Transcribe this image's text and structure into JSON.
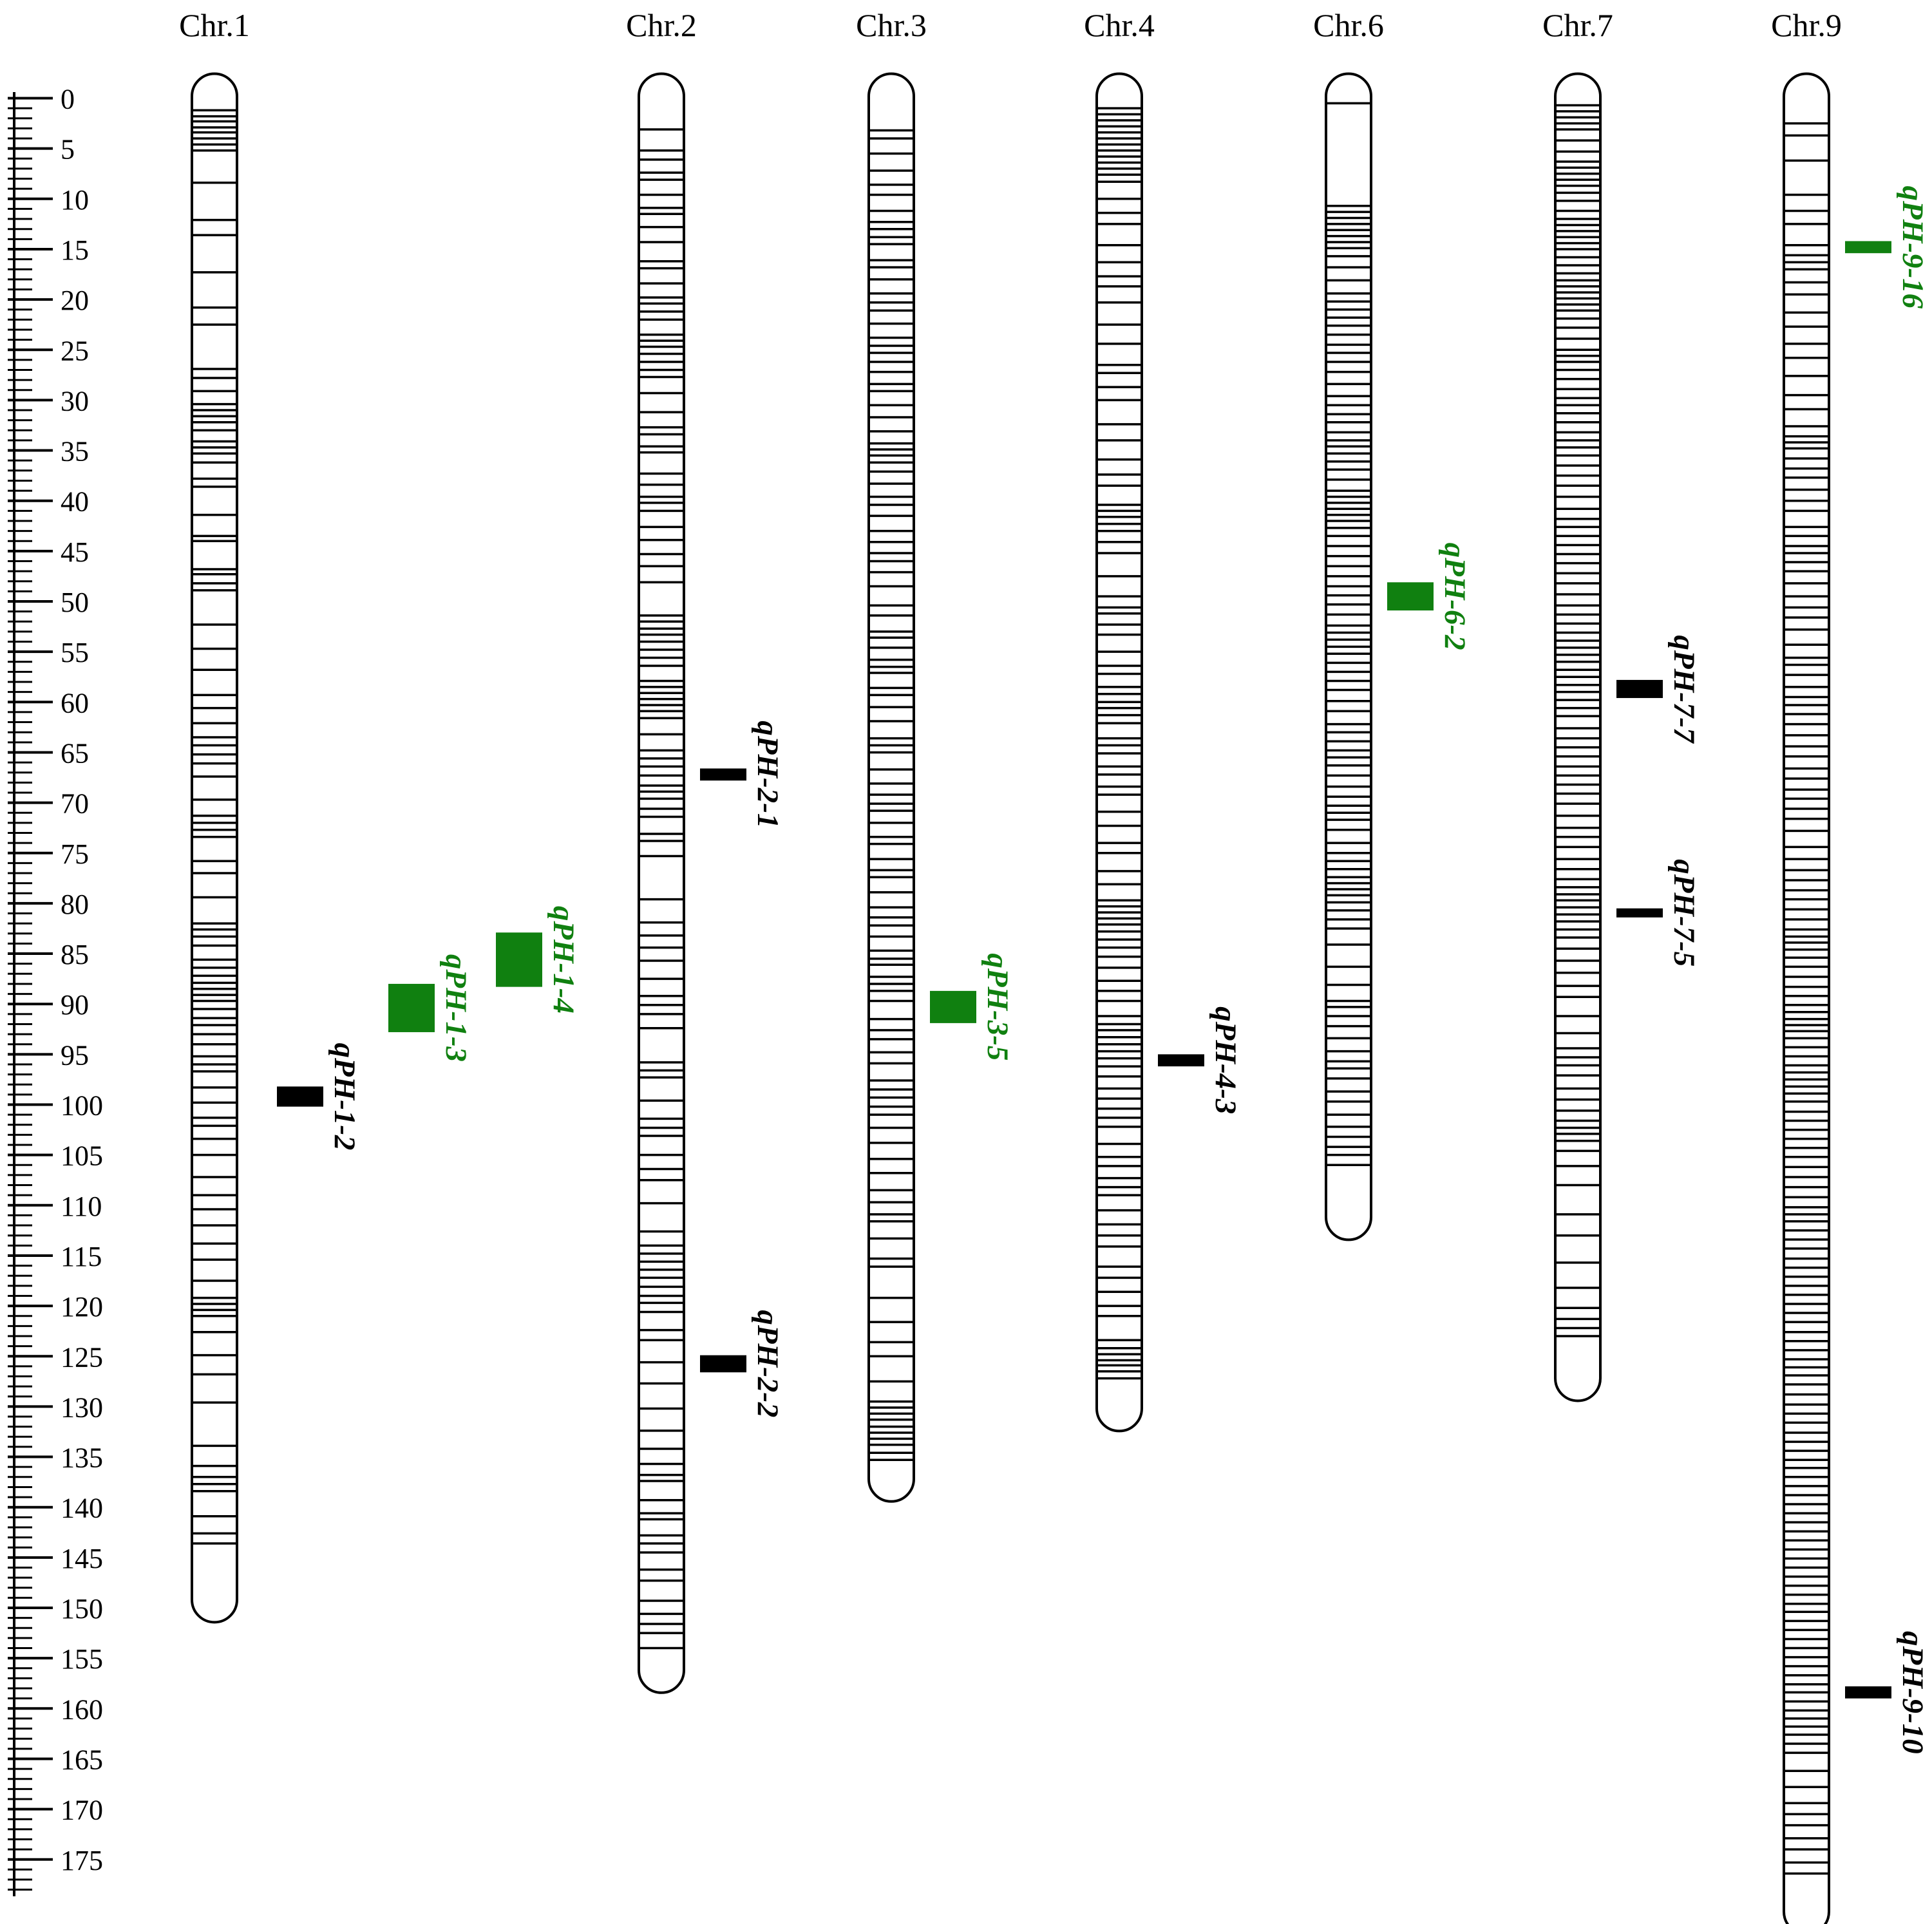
{
  "colors": {
    "black": "#000000",
    "green": "#108010"
  },
  "scale": {
    "max": 178,
    "label_step": 5,
    "labels": [
      "0",
      "5",
      "10",
      "15",
      "20",
      "25",
      "30",
      "35",
      "40",
      "45",
      "50",
      "55",
      "60",
      "65",
      "70",
      "75",
      "80",
      "85",
      "90",
      "95",
      "100",
      "105",
      "110",
      "115",
      "120",
      "125",
      "130",
      "135",
      "140",
      "145",
      "150",
      "155",
      "160",
      "165",
      "170",
      "175"
    ]
  },
  "chromosomes": [
    {
      "name": "Chr.1",
      "length": 149,
      "markers": [
        1.2,
        1.8,
        2.3,
        2.9,
        3.4,
        4.0,
        4.6,
        5.2,
        8.4,
        12.1,
        13.6,
        17.3,
        20.8,
        22.5,
        26.9,
        27.8,
        29.1,
        30.4,
        31.0,
        31.6,
        32.2,
        33.0,
        34.1,
        34.7,
        35.3,
        36.2,
        37.8,
        38.6,
        41.4,
        43.5,
        44.0,
        46.8,
        47.3,
        48.2,
        48.9,
        52.3,
        54.7,
        56.8,
        59.3,
        60.6,
        62.1,
        63.5,
        64.3,
        65.2,
        66.1,
        67.4,
        69.7,
        71.3,
        72.0,
        72.7,
        73.4,
        75.8,
        77.0,
        79.4,
        82.0,
        82.6,
        83.3,
        84.2,
        85.6,
        86.4,
        87.2,
        87.9,
        88.5,
        89.1,
        89.7,
        90.5,
        91.4,
        92.1,
        93.0,
        94.0,
        95.2,
        96.0,
        96.7,
        98.3,
        99.8,
        101.3,
        102.1,
        103.4,
        105.0,
        107.2,
        109.0,
        110.4,
        112.0,
        113.8,
        115.4,
        117.5,
        119.2,
        119.8,
        120.4,
        121.0,
        122.6,
        124.9,
        126.8,
        129.6,
        133.9,
        135.9,
        137.0,
        137.7,
        138.4,
        140.9,
        142.6,
        143.6
      ]
    },
    {
      "name": "Chr.2",
      "length": 156,
      "markers": [
        3.1,
        5.2,
        6.1,
        7.4,
        8.1,
        9.6,
        10.9,
        11.5,
        12.8,
        14.3,
        16.2,
        16.9,
        18.4,
        19.8,
        20.4,
        21.2,
        22.0,
        23.5,
        24.1,
        24.7,
        25.4,
        26.2,
        27.0,
        27.7,
        29.3,
        31.2,
        32.7,
        33.4,
        34.6,
        35.2,
        37.3,
        38.4,
        39.6,
        40.2,
        41.0,
        42.6,
        43.9,
        45.3,
        46.5,
        48.1,
        51.4,
        52.0,
        52.7,
        53.3,
        54.0,
        54.8,
        55.6,
        56.4,
        57.9,
        58.5,
        59.1,
        59.7,
        60.3,
        60.9,
        61.6,
        63.2,
        64.8,
        65.6,
        66.4,
        67.3,
        68.3,
        68.9,
        69.6,
        70.6,
        71.4,
        73.1,
        73.8,
        75.3,
        79.6,
        81.9,
        83.2,
        84.4,
        85.7,
        87.5,
        89.2,
        90.1,
        91.0,
        92.4,
        95.8,
        96.6,
        97.3,
        99.6,
        101.4,
        102.3,
        103.1,
        105.0,
        106.4,
        107.5,
        109.8,
        112.6,
        114.0,
        114.8,
        115.6,
        116.4,
        117.2,
        118.1,
        119.0,
        119.7,
        120.6,
        122.4,
        123.4,
        125.6,
        127.7,
        130.2,
        132.4,
        134.2,
        135.7,
        136.8,
        137.4,
        139.3,
        140.6,
        141.2,
        142.8,
        143.6,
        144.5,
        146.2,
        147.3,
        149.3,
        150.6,
        151.6,
        152.5,
        154.0
      ]
    },
    {
      "name": "Chr.3",
      "length": 137,
      "markers": [
        3.2,
        4.0,
        5.5,
        7.2,
        8.6,
        9.6,
        11.2,
        12.3,
        13.0,
        13.8,
        14.5,
        16.1,
        16.8,
        18.0,
        19.4,
        20.3,
        21.1,
        22.4,
        23.8,
        24.6,
        25.3,
        26.2,
        27.2,
        28.4,
        29.1,
        30.5,
        31.7,
        33.1,
        34.3,
        34.9,
        35.5,
        36.2,
        37.1,
        38.3,
        39.6,
        40.4,
        41.5,
        43.0,
        44.1,
        45.2,
        46.0,
        47.1,
        48.5,
        50.4,
        51.4,
        53.0,
        53.6,
        54.6,
        55.8,
        56.5,
        57.1,
        58.6,
        59.3,
        60.5,
        61.9,
        63.6,
        64.3,
        65.0,
        66.7,
        68.1,
        69.2,
        70.1,
        70.8,
        72.0,
        73.4,
        74.1,
        75.6,
        76.7,
        77.4,
        78.9,
        80.4,
        81.4,
        82.2,
        83.3,
        84.7,
        85.5,
        86.1,
        87.3,
        88.0,
        88.7,
        89.7,
        91.5,
        92.6,
        93.5,
        94.8,
        95.9,
        97.6,
        98.5,
        99.3,
        100.2,
        101.0,
        102.3,
        103.8,
        105.4,
        106.8,
        108.5,
        109.7,
        110.9,
        111.6,
        113.3,
        115.3,
        116.1,
        119.2,
        121.6,
        123.6,
        125.0,
        127.5,
        129.5,
        130.1,
        130.7,
        131.3,
        132.0,
        132.6,
        133.2,
        133.8,
        134.6,
        135.3
      ]
    },
    {
      "name": "Chr.4",
      "length": 130,
      "markers": [
        1.0,
        1.6,
        2.2,
        2.8,
        3.4,
        4.0,
        4.6,
        5.2,
        5.8,
        6.4,
        7.0,
        7.6,
        8.3,
        10.0,
        11.4,
        12.5,
        14.6,
        16.3,
        17.7,
        18.7,
        20.3,
        22.5,
        24.4,
        26.5,
        27.3,
        28.7,
        30.0,
        32.4,
        34.0,
        35.9,
        37.4,
        38.5,
        40.4,
        41.0,
        41.6,
        42.3,
        43.0,
        44.1,
        45.2,
        47.5,
        49.5,
        50.6,
        51.2,
        52.3,
        53.3,
        55.0,
        56.4,
        57.2,
        58.5,
        59.2,
        60.0,
        60.6,
        61.3,
        62.1,
        63.6,
        64.3,
        65.1,
        66.4,
        67.2,
        68.4,
        69.2,
        70.9,
        72.3,
        74.0,
        75.0,
        76.8,
        78.1,
        79.7,
        80.3,
        80.9,
        81.5,
        82.1,
        82.8,
        83.6,
        84.4,
        85.3,
        86.4,
        87.7,
        88.7,
        89.7,
        91.2,
        92.0,
        92.6,
        93.3,
        94.0,
        94.7,
        95.4,
        96.2,
        97.2,
        98.4,
        99.4,
        100.4,
        101.3,
        102.2,
        103.9,
        105.2,
        106.1,
        107.3,
        108.2,
        109.0,
        110.5,
        111.9,
        113.0,
        114.1,
        116.1,
        117.2,
        118.6,
        120.0,
        121.0,
        123.4,
        124.2,
        124.8,
        125.4,
        125.9,
        126.5,
        127.2
      ]
    },
    {
      "name": "Chr.6",
      "length": 111,
      "markers": [
        0.5,
        10.7,
        11.3,
        11.9,
        12.5,
        13.1,
        13.7,
        14.3,
        14.9,
        15.7,
        16.8,
        18.1,
        19.4,
        20.2,
        21.0,
        21.8,
        22.6,
        23.5,
        24.5,
        25.3,
        26.2,
        27.2,
        28.4,
        29.6,
        30.5,
        31.4,
        32.2,
        33.2,
        34.0,
        34.6,
        35.3,
        36.1,
        36.9,
        37.9,
        39.0,
        39.6,
        40.2,
        40.8,
        41.4,
        42.0,
        42.7,
        43.5,
        44.5,
        45.5,
        46.5,
        47.5,
        48.5,
        49.4,
        50.3,
        51.3,
        52.4,
        53.1,
        53.8,
        54.5,
        55.2,
        56.1,
        57.0,
        57.9,
        58.8,
        59.9,
        60.9,
        62.2,
        63.0,
        63.9,
        64.8,
        65.5,
        66.3,
        67.3,
        68.4,
        69.4,
        70.3,
        71.0,
        71.7,
        72.7,
        74.0,
        75.0,
        75.8,
        76.6,
        77.4,
        78.0,
        78.6,
        79.2,
        79.9,
        80.7,
        81.6,
        82.5,
        84.1,
        86.3,
        88.1,
        89.7,
        90.3,
        91.2,
        92.2,
        93.4,
        94.7,
        95.7,
        96.4,
        97.4,
        98.7,
        99.7,
        101.0,
        102.2,
        103.2,
        104.2,
        105.0,
        106.0
      ]
    },
    {
      "name": "Chr.7",
      "length": 127,
      "markers": [
        0.7,
        1.3,
        1.9,
        2.5,
        3.1,
        4.2,
        5.3,
        6.3,
        6.9,
        7.5,
        8.1,
        8.7,
        9.4,
        10.2,
        11.2,
        12.0,
        12.6,
        13.2,
        13.8,
        14.4,
        15.0,
        15.8,
        16.6,
        17.4,
        18.1,
        18.7,
        19.3,
        19.9,
        20.5,
        21.1,
        21.9,
        22.8,
        23.9,
        25.0,
        25.6,
        26.2,
        27.0,
        27.9,
        28.9,
        29.8,
        30.5,
        31.3,
        32.2,
        33.2,
        34.0,
        34.7,
        35.5,
        36.5,
        37.5,
        38.5,
        39.6,
        40.8,
        41.8,
        42.6,
        43.5,
        44.4,
        45.3,
        46.2,
        47.2,
        48.2,
        49.3,
        50.4,
        51.3,
        52.2,
        53.1,
        53.9,
        54.6,
        55.3,
        56.0,
        56.8,
        57.5,
        58.3,
        59.0,
        59.8,
        60.6,
        61.4,
        62.6,
        63.6,
        64.5,
        65.4,
        66.4,
        67.3,
        68.2,
        69.1,
        70.1,
        71.3,
        72.5,
        73.4,
        74.4,
        75.6,
        76.6,
        77.6,
        78.4,
        79.1,
        79.7,
        80.4,
        81.1,
        81.8,
        82.6,
        83.4,
        84.5,
        85.7,
        86.9,
        88.2,
        89.3,
        91.2,
        92.9,
        94.4,
        95.3,
        96.1,
        97.1,
        98.4,
        99.5,
        100.6,
        101.6,
        102.3,
        102.9,
        103.6,
        104.6,
        106.1,
        108.0,
        110.9,
        113.0,
        115.7,
        118.2,
        120.2,
        121.3,
        122.2,
        123.0
      ]
    },
    {
      "name": "Chr.9",
      "length": 180,
      "markers": [
        2.5,
        3.7,
        6.2,
        9.6,
        11.2,
        12.5,
        14.6,
        15.6,
        16.3,
        17.0,
        18.3,
        19.5,
        21.3,
        22.7,
        24.4,
        25.8,
        27.6,
        29.5,
        30.9,
        32.6,
        33.6,
        34.2,
        34.8,
        35.8,
        36.8,
        37.7,
        38.9,
        40.0,
        41.0,
        42.6,
        43.5,
        44.5,
        45.2,
        46.1,
        47.0,
        48.2,
        49.5,
        50.6,
        51.6,
        52.8,
        54.3,
        55.6,
        56.3,
        57.3,
        58.5,
        59.5,
        60.3,
        61.2,
        62.2,
        63.3,
        64.4,
        65.4,
        66.6,
        67.6,
        68.7,
        69.6,
        70.6,
        71.6,
        72.8,
        74.4,
        75.6,
        76.7,
        77.7,
        78.7,
        79.6,
        80.6,
        81.6,
        82.6,
        83.3,
        83.9,
        84.6,
        85.4,
        86.3,
        87.3,
        88.3,
        89.2,
        90.1,
        90.8,
        91.5,
        92.1,
        92.7,
        93.4,
        94.3,
        95.2,
        96.1,
        96.8,
        97.5,
        98.2,
        98.9,
        99.7,
        100.7,
        101.6,
        102.5,
        103.4,
        104.3,
        105.2,
        106.2,
        107.2,
        108.2,
        109.2,
        110.2,
        110.9,
        111.6,
        112.5,
        113.4,
        114.3,
        115.3,
        116.2,
        117.1,
        118.0,
        118.9,
        119.8,
        120.7,
        121.6,
        122.6,
        123.5,
        124.4,
        125.3,
        126.1,
        126.9,
        127.8,
        128.8,
        129.8,
        130.7,
        131.6,
        132.6,
        133.5,
        134.4,
        135.3,
        136.1,
        137.0,
        137.9,
        138.8,
        139.7,
        140.6,
        141.5,
        142.4,
        143.3,
        144.2,
        145.1,
        146.0,
        146.9,
        147.8,
        148.7,
        149.6,
        150.4,
        151.3,
        152.2,
        153.1,
        154.0,
        154.9,
        155.8,
        156.7,
        157.6,
        158.4,
        159.3,
        160.2,
        161.0,
        161.8,
        162.6,
        163.5,
        164.4,
        166.2,
        167.8,
        169.4,
        170.5,
        171.6,
        172.9,
        174.0,
        175.3,
        176.4
      ]
    }
  ],
  "qtls": [
    {
      "label": "qPH-1-2",
      "chrom": 0,
      "start": 98.2,
      "end": 100.2,
      "color": "black",
      "col": 1
    },
    {
      "label": "qPH-1-3",
      "chrom": 0,
      "start": 88.0,
      "end": 92.8,
      "color": "green",
      "col": 2
    },
    {
      "label": "qPH-1-4",
      "chrom": 0,
      "start": 82.9,
      "end": 88.3,
      "color": "green",
      "col": 3
    },
    {
      "label": "qPH-2-1",
      "chrom": 1,
      "start": 66.6,
      "end": 67.8,
      "color": "black",
      "col": 1
    },
    {
      "label": "qPH-2-2",
      "chrom": 1,
      "start": 124.9,
      "end": 126.6,
      "color": "black",
      "col": 1
    },
    {
      "label": "qPH-3-5",
      "chrom": 2,
      "start": 88.7,
      "end": 91.9,
      "color": "green",
      "col": 1
    },
    {
      "label": "qPH-4-3",
      "chrom": 3,
      "start": 95.0,
      "end": 96.2,
      "color": "black",
      "col": 1
    },
    {
      "label": "qPH-6-2",
      "chrom": 4,
      "start": 48.1,
      "end": 50.9,
      "color": "green",
      "col": 1
    },
    {
      "label": "qPH-7-7",
      "chrom": 5,
      "start": 57.8,
      "end": 59.6,
      "color": "black",
      "col": 1
    },
    {
      "label": "qPH-7-5",
      "chrom": 5,
      "start": 80.5,
      "end": 81.4,
      "color": "black",
      "col": 1
    },
    {
      "label": "qPH-9-16",
      "chrom": 6,
      "start": 14.2,
      "end": 15.4,
      "color": "green",
      "col": 1
    },
    {
      "label": "qPH-9-10",
      "chrom": 6,
      "start": 157.8,
      "end": 159.0,
      "color": "black",
      "col": 1
    }
  ]
}
